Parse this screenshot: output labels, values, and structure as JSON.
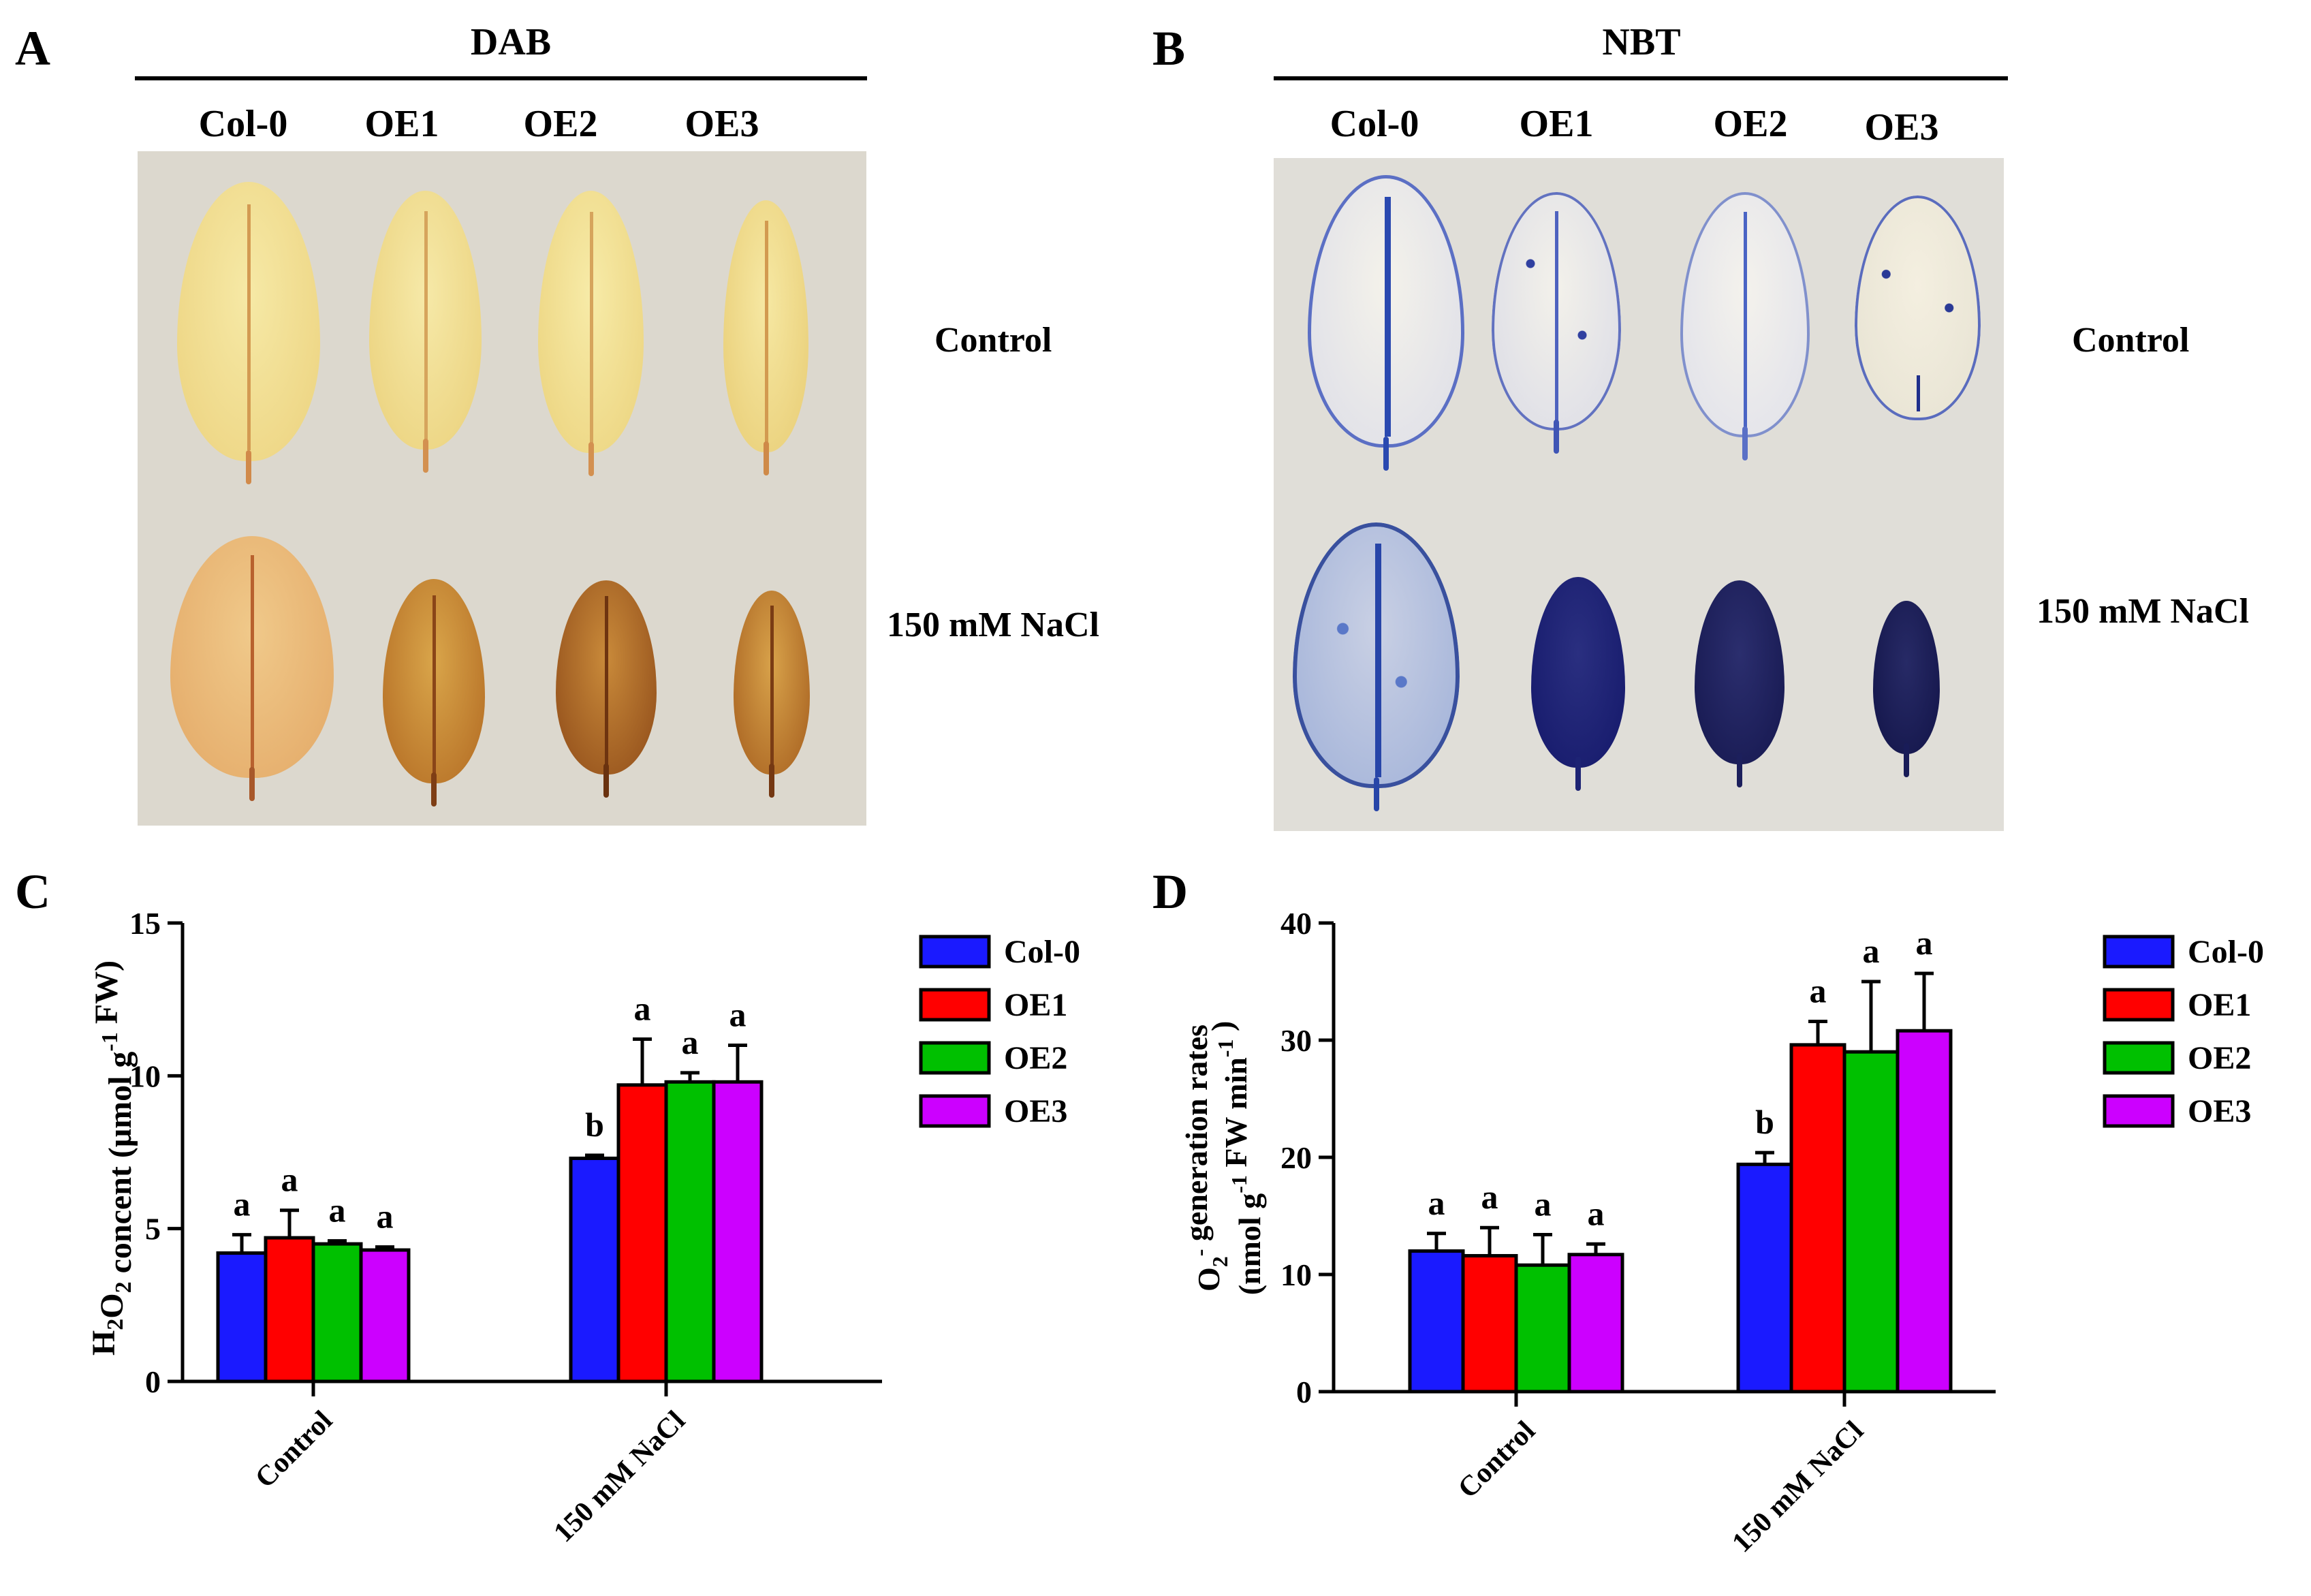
{
  "panels": {
    "A": {
      "letter": "A",
      "stain": "DAB",
      "columns": [
        "Col-0",
        "OE1",
        "OE2",
        "OE3"
      ],
      "rows": [
        "Control",
        "150 mM NaCl"
      ]
    },
    "B": {
      "letter": "B",
      "stain": "NBT",
      "columns": [
        "Col-0",
        "OE1",
        "OE2",
        "OE3"
      ],
      "rows": [
        "Control",
        "150 mM NaCl"
      ]
    }
  },
  "chart_data": [
    {
      "panel": "C",
      "type": "bar",
      "ylabel": "H2O2 concent (μmol g-1 FW)",
      "ylim": [
        0,
        15
      ],
      "yticks": [
        0,
        5,
        10,
        15
      ],
      "categories": [
        "Control",
        "150 mM NaCl"
      ],
      "series": [
        {
          "name": "Col-0",
          "color": "#1a1aff",
          "values": [
            4.2,
            7.3
          ],
          "errors": [
            0.6,
            0.1
          ],
          "letters": [
            "a",
            "b"
          ]
        },
        {
          "name": "OE1",
          "color": "#ff0000",
          "values": [
            4.7,
            9.7
          ],
          "errors": [
            0.9,
            1.5
          ],
          "letters": [
            "a",
            "a"
          ]
        },
        {
          "name": "OE2",
          "color": "#00c000",
          "values": [
            4.5,
            9.8
          ],
          "errors": [
            0.1,
            0.3
          ],
          "letters": [
            "a",
            "a"
          ]
        },
        {
          "name": "OE3",
          "color": "#cc00ff",
          "values": [
            4.3,
            9.8
          ],
          "errors": [
            0.1,
            1.2
          ],
          "letters": [
            "a",
            "a"
          ]
        }
      ]
    },
    {
      "panel": "D",
      "type": "bar",
      "ylabel": "O2- generation rates (nmol g-1 FW min-1)",
      "ylim": [
        0,
        40
      ],
      "yticks": [
        0,
        10,
        20,
        30,
        40
      ],
      "categories": [
        "Control",
        "150 mM NaCl"
      ],
      "series": [
        {
          "name": "Col-0",
          "color": "#1a1aff",
          "values": [
            12,
            19.4
          ],
          "errors": [
            1.5,
            1.0
          ],
          "letters": [
            "a",
            "b"
          ]
        },
        {
          "name": "OE1",
          "color": "#ff0000",
          "values": [
            11.6,
            29.6
          ],
          "errors": [
            2.4,
            2.0
          ],
          "letters": [
            "a",
            "a"
          ]
        },
        {
          "name": "OE2",
          "color": "#00c000",
          "values": [
            10.8,
            29.0
          ],
          "errors": [
            2.6,
            6.0
          ],
          "letters": [
            "a",
            "a"
          ]
        },
        {
          "name": "OE3",
          "color": "#cc00ff",
          "values": [
            11.7,
            30.8
          ],
          "errors": [
            0.9,
            4.9
          ],
          "letters": [
            "a",
            "a"
          ]
        }
      ]
    }
  ]
}
